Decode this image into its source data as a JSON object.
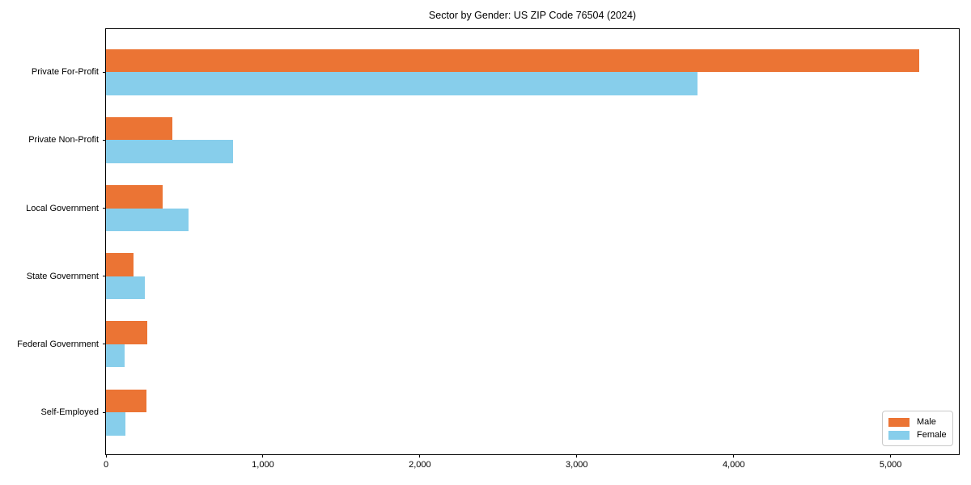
{
  "chart_data": {
    "type": "bar",
    "orientation": "horizontal",
    "title": "Sector by Gender: US ZIP Code 76504 (2024)",
    "categories": [
      "Private For-Profit",
      "Private Non-Profit",
      "Local Government",
      "State Government",
      "Federal Government",
      "Self-Employed"
    ],
    "series": [
      {
        "name": "Male",
        "color": "#eb7434",
        "values": [
          5180,
          425,
          360,
          175,
          265,
          260
        ]
      },
      {
        "name": "Female",
        "color": "#87ceeb",
        "values": [
          3770,
          810,
          525,
          245,
          120,
          125
        ]
      }
    ],
    "xlabel": "",
    "ylabel": "",
    "xlim": [
      0,
      5435
    ],
    "x_ticks": [
      0,
      1000,
      2000,
      3000,
      4000,
      5000
    ],
    "x_tick_labels": [
      "0",
      "1,000",
      "2,000",
      "3,000",
      "4,000",
      "5,000"
    ],
    "grid": false,
    "legend": {
      "position": "lower-right",
      "entries": [
        {
          "label": "Male",
          "color": "#eb7434"
        },
        {
          "label": "Female",
          "color": "#87ceeb"
        }
      ]
    }
  }
}
